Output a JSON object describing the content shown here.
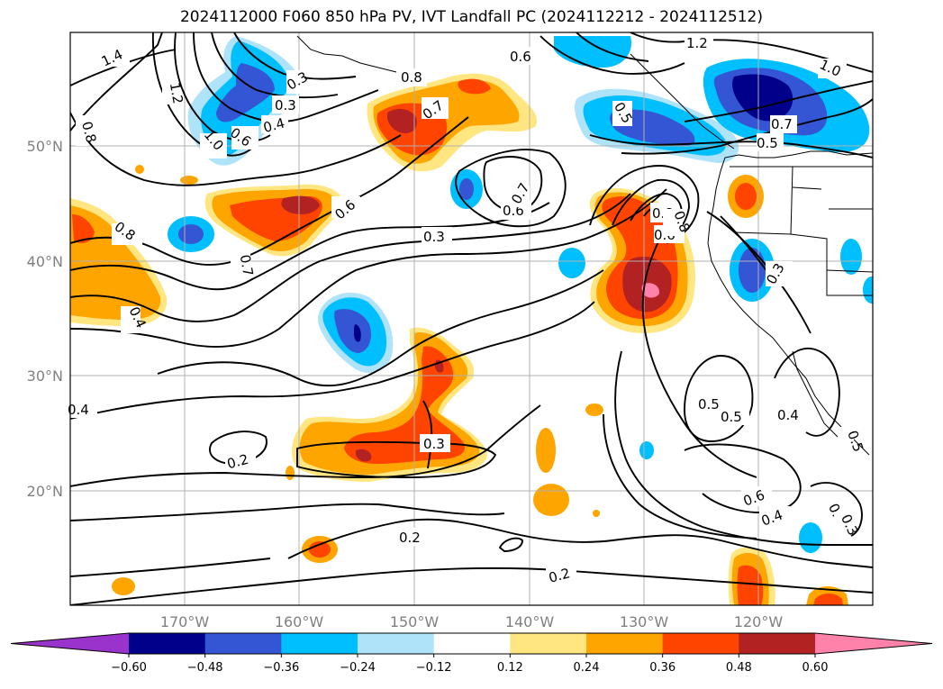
{
  "title": "2024112000 F060 850 hPa PV, IVT Landfall PC (2024112212 - 2024112512)",
  "map": {
    "lat_labels": [
      "50°N",
      "40°N",
      "30°N",
      "20°N"
    ],
    "lon_labels": [
      "170°W",
      "160°W",
      "150°W",
      "140°W",
      "130°W",
      "120°W"
    ],
    "gridlines": true,
    "coastlines": true
  },
  "colorbar": {
    "tick_labels": [
      "−0.60",
      "−0.48",
      "−0.36",
      "−0.24",
      "−0.12",
      "0.12",
      "0.24",
      "0.36",
      "0.48",
      "0.60"
    ],
    "colors": [
      "#9a33cc",
      "#00008b",
      "#3455d4",
      "#00bfff",
      "#aee3fa",
      "#ffffff",
      "#ffe680",
      "#ffa500",
      "#ff4400",
      "#b22222",
      "#ff82ab"
    ],
    "extend": "both"
  },
  "contour_labels": [
    "1.4",
    "1.2",
    "0.8",
    "0.6",
    "0.4",
    "0.3",
    "1.0",
    "0.8",
    "0.7",
    "0.6",
    "1.2",
    "1.0",
    "0.5",
    "0.7",
    "0.6",
    "0.3",
    "0.8",
    "0.6",
    "0.8",
    "0.7",
    "0.4",
    "0.6",
    "0.3",
    "0.4",
    "0.2",
    "0.3",
    "0.5",
    "0.5",
    "0.4",
    "0.6",
    "0.4",
    "0.2",
    "0.2",
    "0.8",
    "0.3",
    "0.5",
    "0.4",
    "0.3",
    "0.5",
    "0.7"
  ]
}
